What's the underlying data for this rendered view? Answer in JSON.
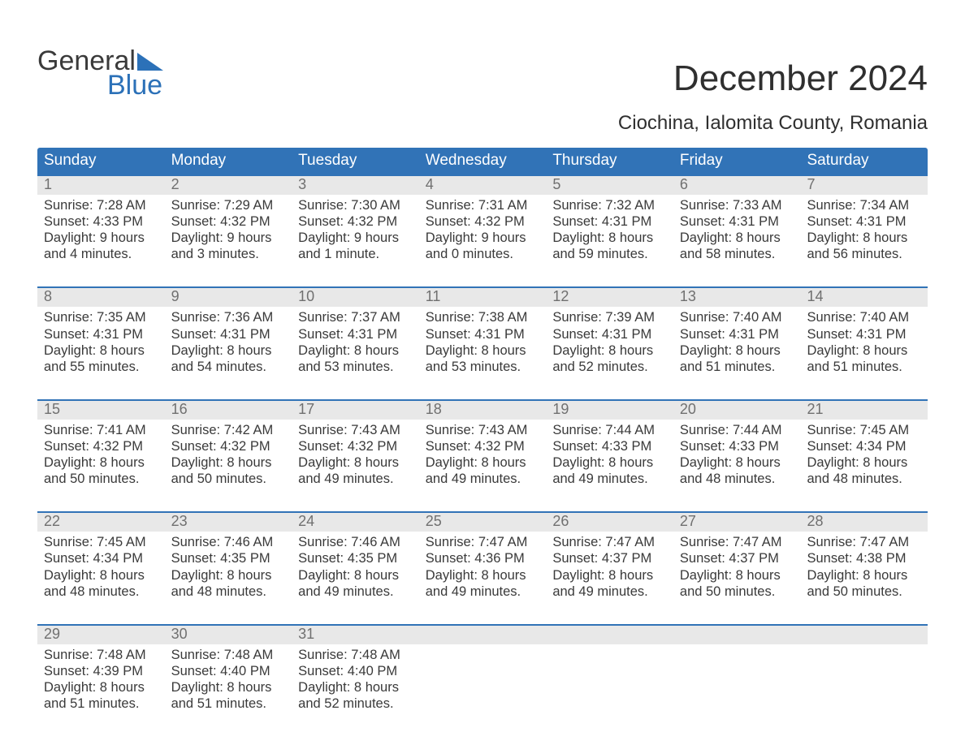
{
  "logo": {
    "line1": "General",
    "line2": "Blue"
  },
  "title": "December 2024",
  "subtitle": "Ciochina, Ialomita County, Romania",
  "colors": {
    "header_bg": "#3173b7",
    "header_text": "#ffffff",
    "border": "#3173b7",
    "day_band_bg": "#e8e8e8",
    "day_number": "#707070",
    "body_text": "#3a3a3a",
    "logo_gray": "#3a3a3a",
    "logo_blue": "#2c71b8",
    "background": "#ffffff"
  },
  "weekdays": [
    "Sunday",
    "Monday",
    "Tuesday",
    "Wednesday",
    "Thursday",
    "Friday",
    "Saturday"
  ],
  "weeks": [
    [
      {
        "n": "1",
        "sunrise": "7:28 AM",
        "sunset": "4:33 PM",
        "dh": "9",
        "dm": "4 minutes"
      },
      {
        "n": "2",
        "sunrise": "7:29 AM",
        "sunset": "4:32 PM",
        "dh": "9",
        "dm": "3 minutes"
      },
      {
        "n": "3",
        "sunrise": "7:30 AM",
        "sunset": "4:32 PM",
        "dh": "9",
        "dm": "1 minute"
      },
      {
        "n": "4",
        "sunrise": "7:31 AM",
        "sunset": "4:32 PM",
        "dh": "9",
        "dm": "0 minutes"
      },
      {
        "n": "5",
        "sunrise": "7:32 AM",
        "sunset": "4:31 PM",
        "dh": "8",
        "dm": "59 minutes"
      },
      {
        "n": "6",
        "sunrise": "7:33 AM",
        "sunset": "4:31 PM",
        "dh": "8",
        "dm": "58 minutes"
      },
      {
        "n": "7",
        "sunrise": "7:34 AM",
        "sunset": "4:31 PM",
        "dh": "8",
        "dm": "56 minutes"
      }
    ],
    [
      {
        "n": "8",
        "sunrise": "7:35 AM",
        "sunset": "4:31 PM",
        "dh": "8",
        "dm": "55 minutes"
      },
      {
        "n": "9",
        "sunrise": "7:36 AM",
        "sunset": "4:31 PM",
        "dh": "8",
        "dm": "54 minutes"
      },
      {
        "n": "10",
        "sunrise": "7:37 AM",
        "sunset": "4:31 PM",
        "dh": "8",
        "dm": "53 minutes"
      },
      {
        "n": "11",
        "sunrise": "7:38 AM",
        "sunset": "4:31 PM",
        "dh": "8",
        "dm": "53 minutes"
      },
      {
        "n": "12",
        "sunrise": "7:39 AM",
        "sunset": "4:31 PM",
        "dh": "8",
        "dm": "52 minutes"
      },
      {
        "n": "13",
        "sunrise": "7:40 AM",
        "sunset": "4:31 PM",
        "dh": "8",
        "dm": "51 minutes"
      },
      {
        "n": "14",
        "sunrise": "7:40 AM",
        "sunset": "4:31 PM",
        "dh": "8",
        "dm": "51 minutes"
      }
    ],
    [
      {
        "n": "15",
        "sunrise": "7:41 AM",
        "sunset": "4:32 PM",
        "dh": "8",
        "dm": "50 minutes"
      },
      {
        "n": "16",
        "sunrise": "7:42 AM",
        "sunset": "4:32 PM",
        "dh": "8",
        "dm": "50 minutes"
      },
      {
        "n": "17",
        "sunrise": "7:43 AM",
        "sunset": "4:32 PM",
        "dh": "8",
        "dm": "49 minutes"
      },
      {
        "n": "18",
        "sunrise": "7:43 AM",
        "sunset": "4:32 PM",
        "dh": "8",
        "dm": "49 minutes"
      },
      {
        "n": "19",
        "sunrise": "7:44 AM",
        "sunset": "4:33 PM",
        "dh": "8",
        "dm": "49 minutes"
      },
      {
        "n": "20",
        "sunrise": "7:44 AM",
        "sunset": "4:33 PM",
        "dh": "8",
        "dm": "48 minutes"
      },
      {
        "n": "21",
        "sunrise": "7:45 AM",
        "sunset": "4:34 PM",
        "dh": "8",
        "dm": "48 minutes"
      }
    ],
    [
      {
        "n": "22",
        "sunrise": "7:45 AM",
        "sunset": "4:34 PM",
        "dh": "8",
        "dm": "48 minutes"
      },
      {
        "n": "23",
        "sunrise": "7:46 AM",
        "sunset": "4:35 PM",
        "dh": "8",
        "dm": "48 minutes"
      },
      {
        "n": "24",
        "sunrise": "7:46 AM",
        "sunset": "4:35 PM",
        "dh": "8",
        "dm": "49 minutes"
      },
      {
        "n": "25",
        "sunrise": "7:47 AM",
        "sunset": "4:36 PM",
        "dh": "8",
        "dm": "49 minutes"
      },
      {
        "n": "26",
        "sunrise": "7:47 AM",
        "sunset": "4:37 PM",
        "dh": "8",
        "dm": "49 minutes"
      },
      {
        "n": "27",
        "sunrise": "7:47 AM",
        "sunset": "4:37 PM",
        "dh": "8",
        "dm": "50 minutes"
      },
      {
        "n": "28",
        "sunrise": "7:47 AM",
        "sunset": "4:38 PM",
        "dh": "8",
        "dm": "50 minutes"
      }
    ],
    [
      {
        "n": "29",
        "sunrise": "7:48 AM",
        "sunset": "4:39 PM",
        "dh": "8",
        "dm": "51 minutes"
      },
      {
        "n": "30",
        "sunrise": "7:48 AM",
        "sunset": "4:40 PM",
        "dh": "8",
        "dm": "51 minutes"
      },
      {
        "n": "31",
        "sunrise": "7:48 AM",
        "sunset": "4:40 PM",
        "dh": "8",
        "dm": "52 minutes"
      },
      {
        "empty": true
      },
      {
        "empty": true
      },
      {
        "empty": true
      },
      {
        "empty": true
      }
    ]
  ],
  "labels": {
    "sunrise": "Sunrise: ",
    "sunset": "Sunset: ",
    "daylight": "Daylight: ",
    "hours": " hours",
    "and": "and "
  }
}
